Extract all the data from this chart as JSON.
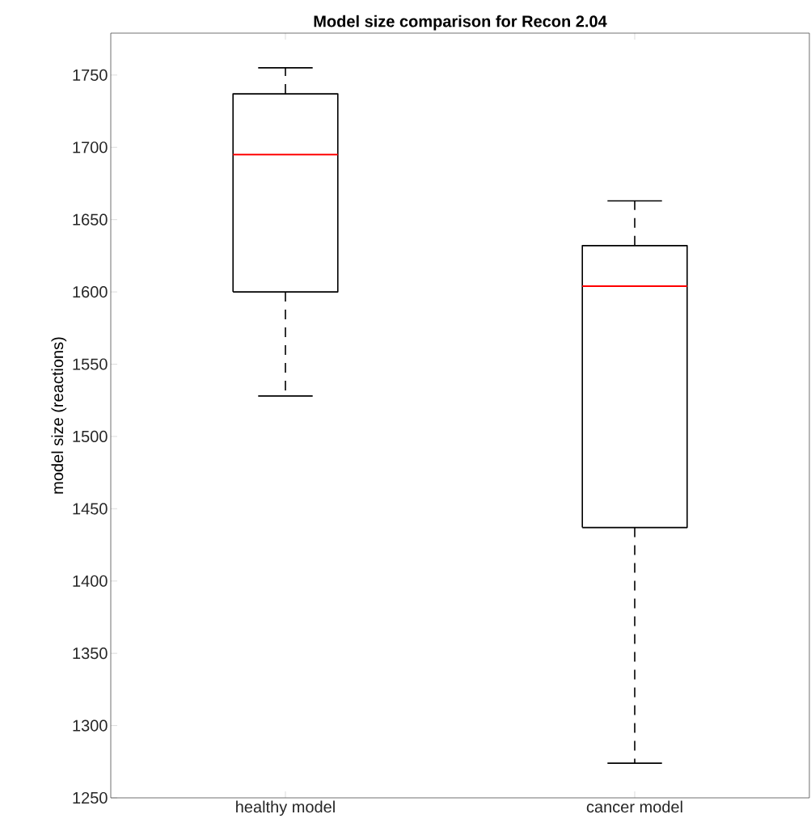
{
  "chart_data": {
    "type": "box",
    "title": "**Model size comparison for Recon 2.04**",
    "ylabel": "model size (reactions)",
    "categories": [
      "healthy model",
      "cancer model"
    ],
    "boxes": [
      {
        "low": 1528,
        "q1": 1600,
        "median": 1695,
        "q3": 1737,
        "high": 1755
      },
      {
        "low": 1274,
        "q1": 1437,
        "median": 1604,
        "q3": 1632,
        "high": 1663
      }
    ],
    "ylim": [
      1250,
      1779
    ],
    "yticks": [
      1250,
      1300,
      1350,
      1400,
      1450,
      1500,
      1550,
      1600,
      1650,
      1700,
      1750
    ],
    "grid": false
  }
}
